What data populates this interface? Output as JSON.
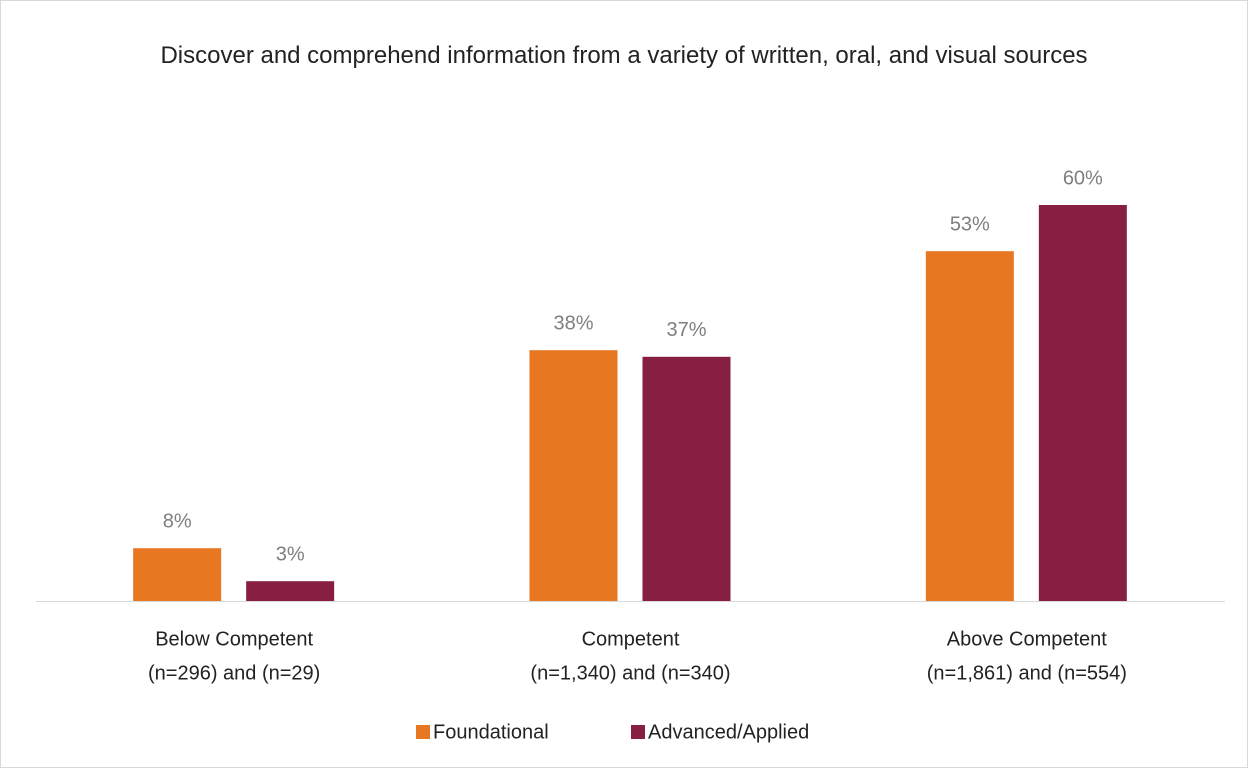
{
  "chart_data": {
    "type": "bar",
    "title": "Discover and comprehend information from a variety of written, oral, and visual sources",
    "categories": [
      [
        "Below Competent",
        "(n=296) and (n=29)"
      ],
      [
        "Competent",
        "(n=1,340) and (n=340)"
      ],
      [
        "Above Competent",
        "(n=1,861) and (n=554)"
      ]
    ],
    "series": [
      {
        "name": "Foundational",
        "color": "#e87722",
        "values": [
          8,
          38,
          53
        ],
        "value_labels": [
          "8%",
          "38%",
          "53%"
        ]
      },
      {
        "name": "Advanced/Applied",
        "color": "#861f41",
        "values": [
          3,
          37,
          60
        ],
        "value_labels": [
          "3%",
          "37%",
          "60%"
        ]
      }
    ],
    "legend": "bottom"
  }
}
